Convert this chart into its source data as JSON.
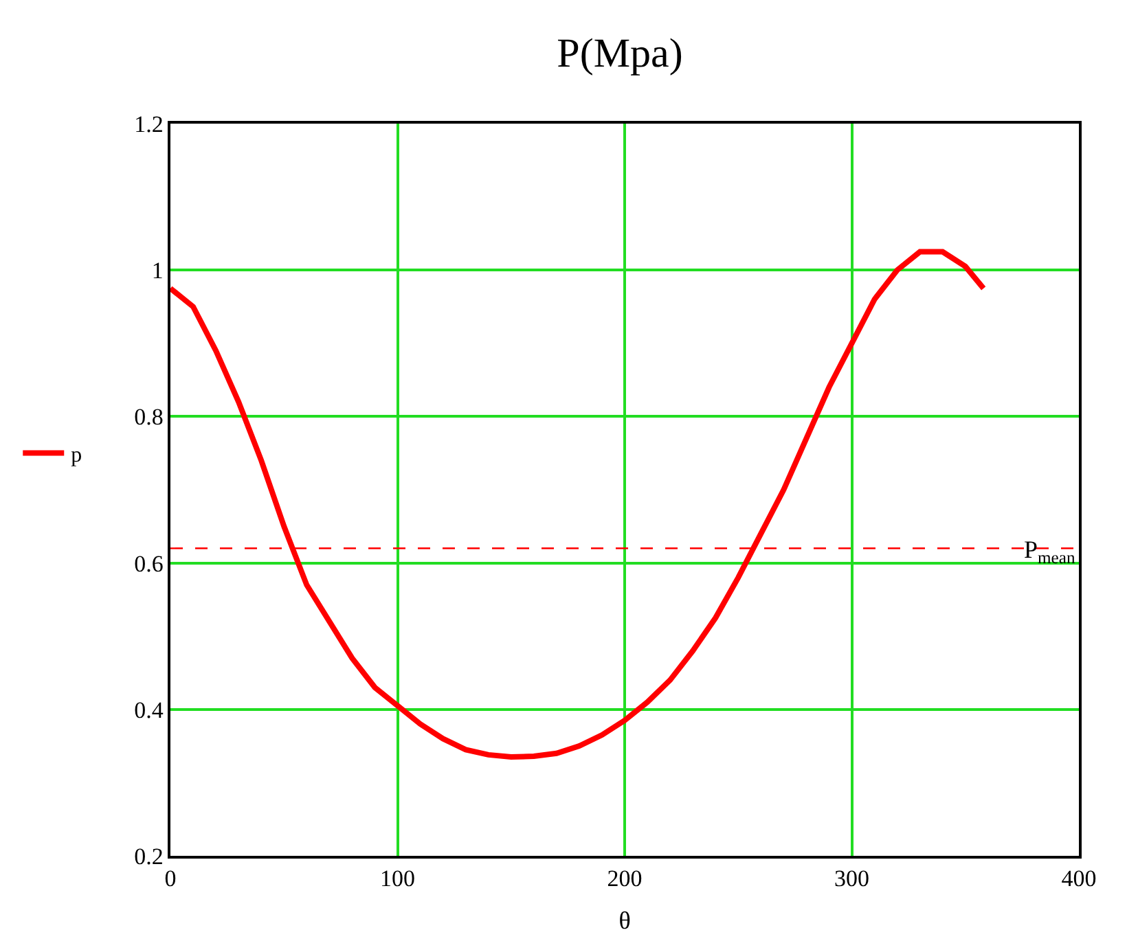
{
  "chart_data": {
    "type": "line",
    "title": "P(Mpa)",
    "xlabel": "θ",
    "x": [
      0,
      10,
      20,
      30,
      40,
      50,
      60,
      70,
      80,
      90,
      100,
      110,
      120,
      130,
      140,
      150,
      160,
      170,
      180,
      190,
      200,
      210,
      220,
      230,
      240,
      250,
      260,
      270,
      280,
      290,
      300,
      310,
      320,
      330,
      340,
      350,
      358
    ],
    "series": [
      {
        "name": "p",
        "color": "#ff0000",
        "values": [
          0.975,
          0.95,
          0.89,
          0.82,
          0.74,
          0.65,
          0.57,
          0.52,
          0.47,
          0.43,
          0.405,
          0.38,
          0.36,
          0.345,
          0.338,
          0.335,
          0.336,
          0.34,
          0.35,
          0.365,
          0.385,
          0.41,
          0.44,
          0.48,
          0.525,
          0.58,
          0.64,
          0.7,
          0.77,
          0.84,
          0.9,
          0.96,
          1.0,
          1.025,
          1.025,
          1.005,
          0.975
        ]
      }
    ],
    "xlim": [
      0,
      400
    ],
    "xticks": [
      0,
      100,
      200,
      300,
      400
    ],
    "ylim": [
      0.2,
      1.2
    ],
    "yticks": [
      0.2,
      0.4,
      0.6,
      0.8,
      1,
      1.2
    ],
    "ref_lines": [
      {
        "axis": "y",
        "value": 0.62,
        "label": "P$_{mean}$",
        "color": "#ff0000",
        "line_style": "dashed"
      }
    ],
    "grid": true,
    "legend": "left",
    "marker": "none",
    "line_style": "solid"
  }
}
